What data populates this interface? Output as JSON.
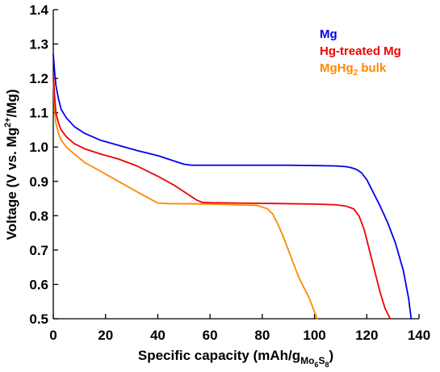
{
  "chart_data": {
    "type": "line",
    "xlabel": {
      "main": "Specific capacity (mAh/g",
      "sub1": "Mo",
      "sub2": "6",
      "sub3": "S",
      "sub4": "8",
      "close": ")"
    },
    "ylabel": {
      "main": "Voltage (V vs. Mg",
      "sup": "2+",
      "tail": "/Mg)"
    },
    "xlim": [
      0,
      140
    ],
    "ylim": [
      0.5,
      1.4
    ],
    "x_ticks": [
      "0",
      "20",
      "40",
      "60",
      "80",
      "100",
      "120",
      "140"
    ],
    "y_ticks": [
      "0.5",
      "0.6",
      "0.7",
      "0.8",
      "0.9",
      "1.0",
      "1.1",
      "1.2",
      "1.3",
      "1.4"
    ],
    "legend_position": "top-right",
    "series": [
      {
        "name": "Mg",
        "color": "#0000ee",
        "x": [
          0,
          0.5,
          1,
          2,
          3,
          5,
          8,
          12,
          18,
          25,
          32,
          40,
          46,
          50,
          53,
          60,
          70,
          80,
          90,
          100,
          108,
          112,
          114,
          116,
          118,
          120,
          122,
          125,
          128,
          131,
          134,
          136,
          137
        ],
        "y": [
          1.27,
          1.22,
          1.18,
          1.14,
          1.11,
          1.085,
          1.06,
          1.04,
          1.02,
          1.005,
          0.99,
          0.975,
          0.96,
          0.95,
          0.947,
          0.947,
          0.947,
          0.947,
          0.947,
          0.946,
          0.945,
          0.943,
          0.94,
          0.935,
          0.925,
          0.905,
          0.875,
          0.83,
          0.78,
          0.72,
          0.64,
          0.56,
          0.5
        ]
      },
      {
        "name": "Hg-treated Mg",
        "color": "#ee0000",
        "x": [
          0,
          0.5,
          1,
          2,
          3,
          5,
          8,
          12,
          18,
          25,
          32,
          40,
          46,
          52,
          55,
          57,
          60,
          70,
          80,
          90,
          100,
          108,
          112,
          115,
          117,
          119,
          121,
          123,
          125,
          127,
          129
        ],
        "y": [
          1.21,
          1.15,
          1.1,
          1.07,
          1.05,
          1.03,
          1.01,
          0.995,
          0.98,
          0.965,
          0.945,
          0.915,
          0.89,
          0.86,
          0.845,
          0.839,
          0.838,
          0.837,
          0.836,
          0.835,
          0.834,
          0.832,
          0.828,
          0.82,
          0.8,
          0.76,
          0.7,
          0.64,
          0.58,
          0.53,
          0.5
        ]
      },
      {
        "name": "MgHg₂ bulk",
        "color": "#ff8800",
        "x": [
          0,
          0.5,
          1,
          2,
          3,
          5,
          8,
          12,
          18,
          25,
          32,
          38,
          40,
          45,
          50,
          60,
          70,
          78,
          82,
          84,
          86,
          88,
          90,
          92,
          94,
          96,
          98,
          100,
          101
        ],
        "y": [
          1.2,
          1.11,
          1.07,
          1.04,
          1.02,
          1.0,
          0.98,
          0.955,
          0.93,
          0.9,
          0.87,
          0.845,
          0.837,
          0.835,
          0.835,
          0.834,
          0.832,
          0.83,
          0.82,
          0.805,
          0.775,
          0.74,
          0.7,
          0.66,
          0.62,
          0.59,
          0.56,
          0.52,
          0.5
        ]
      }
    ]
  },
  "legend": {
    "mg": "Mg",
    "hg_treated": "Hg-treated Mg",
    "mghg2_main": "MgHg",
    "mghg2_sub": "2",
    "mghg2_tail": " bulk"
  }
}
